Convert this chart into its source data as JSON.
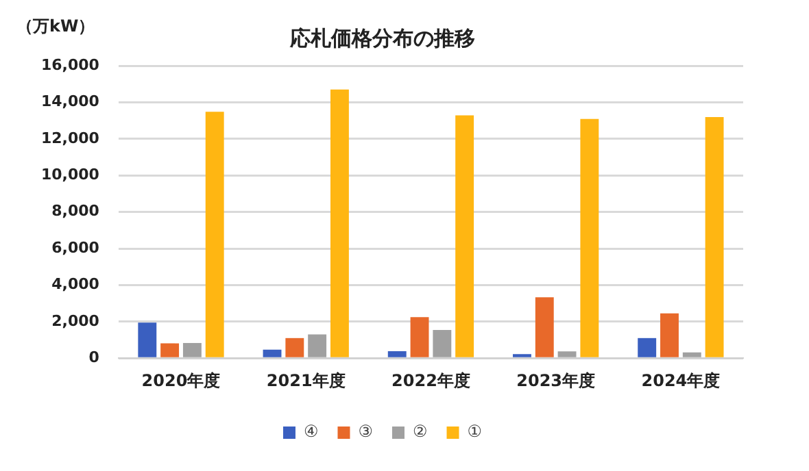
{
  "chart_data": {
    "type": "bar",
    "title": "応札価格分布の推移",
    "ylabel": "（万kW）",
    "categories": [
      "2020年度",
      "2021年度",
      "2022年度",
      "2023年度",
      "2024年度"
    ],
    "series": [
      {
        "name": "④",
        "color": "#3a5fc0",
        "values": [
          1950,
          470,
          380,
          220,
          1100
        ]
      },
      {
        "name": "③",
        "color": "#e8692a",
        "values": [
          810,
          1100,
          2250,
          3330,
          2450
        ]
      },
      {
        "name": "②",
        "color": "#a0a0a0",
        "values": [
          830,
          1300,
          1540,
          370,
          320
        ]
      },
      {
        "name": "①",
        "color": "#ffb612",
        "values": [
          13480,
          14700,
          13280,
          13090,
          13190
        ]
      }
    ],
    "ylim": [
      0,
      16000
    ],
    "yticks": [
      0,
      {
        "value": 2000,
        "label": "2,000"
      },
      {
        "value": 4000,
        "label": "4,000"
      },
      {
        "value": 6000,
        "label": "6,000"
      },
      {
        "value": 8000,
        "label": "8,000"
      },
      {
        "value": 10000,
        "label": "10,000"
      },
      {
        "value": 12000,
        "label": "12,000"
      },
      {
        "value": 14000,
        "label": "14,000"
      },
      {
        "value": 16000,
        "label": "16,000"
      }
    ],
    "grid": "y",
    "legend": "bottom"
  }
}
